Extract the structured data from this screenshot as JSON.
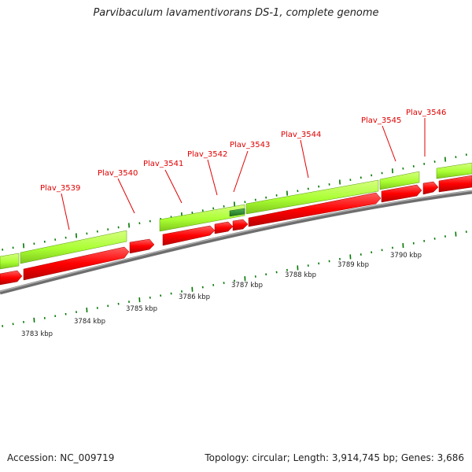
{
  "title": "Parvibaculum lavamentivorans DS-1, complete genome",
  "footer": {
    "accession": "Accession: NC_009719",
    "summary": "Topology: circular; Length: 3,914,745 bp; Genes: 3,686"
  },
  "colors": {
    "cds": "#ff0000",
    "gene": "#aaff33",
    "selected_gene": "#2e8b2e",
    "backbone": "#888888",
    "tick": "#007700",
    "gene_label": "#e00000"
  },
  "gene_labels": [
    "Plav_3539",
    "Plav_3540",
    "Plav_3541",
    "Plav_3542",
    "Plav_3543",
    "Plav_3544",
    "Plav_3545",
    "Plav_3546"
  ],
  "scale_labels": [
    "3783 kbp",
    "3784 kbp",
    "3785 kbp",
    "3786 kbp",
    "3787 kbp",
    "3788 kbp",
    "3789 kbp",
    "3790 kbp"
  ]
}
